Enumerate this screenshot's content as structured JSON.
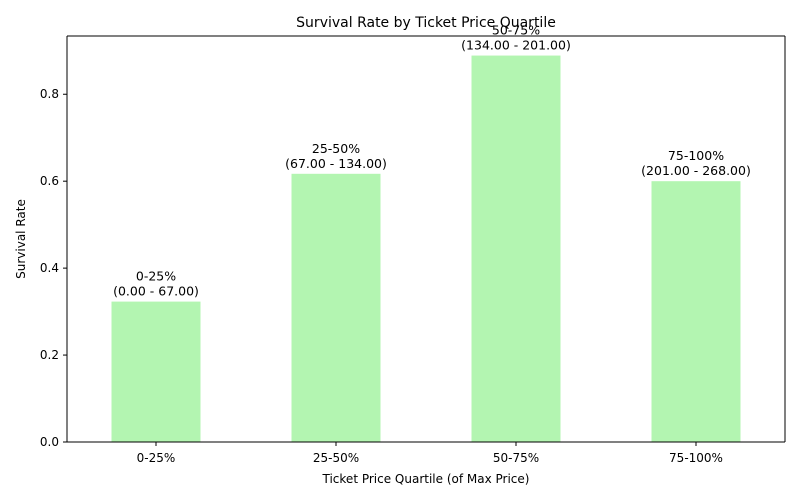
{
  "chart_data": {
    "type": "bar",
    "title": "Survival Rate by Ticket Price Quartile",
    "xlabel": "Ticket Price Quartile (of Max Price)",
    "ylabel": "Survival Rate",
    "categories": [
      "0-25%",
      "25-50%",
      "50-75%",
      "75-100%"
    ],
    "values": [
      0.323,
      0.617,
      0.889,
      0.6
    ],
    "bar_labels": [
      [
        "0-25%",
        "(0.00 - 67.00)"
      ],
      [
        "25-50%",
        "(67.00 - 134.00)"
      ],
      [
        "50-75%",
        "(134.00 - 201.00)"
      ],
      [
        "75-100%",
        "(201.00 - 268.00)"
      ]
    ],
    "yticks": [
      "0.0",
      "0.2",
      "0.4",
      "0.6",
      "0.8"
    ],
    "ylim": [
      0,
      0.934
    ],
    "grid": false,
    "colors": {
      "bar": "#b3f5b1",
      "axis": "#000000",
      "text": "#000000"
    }
  }
}
